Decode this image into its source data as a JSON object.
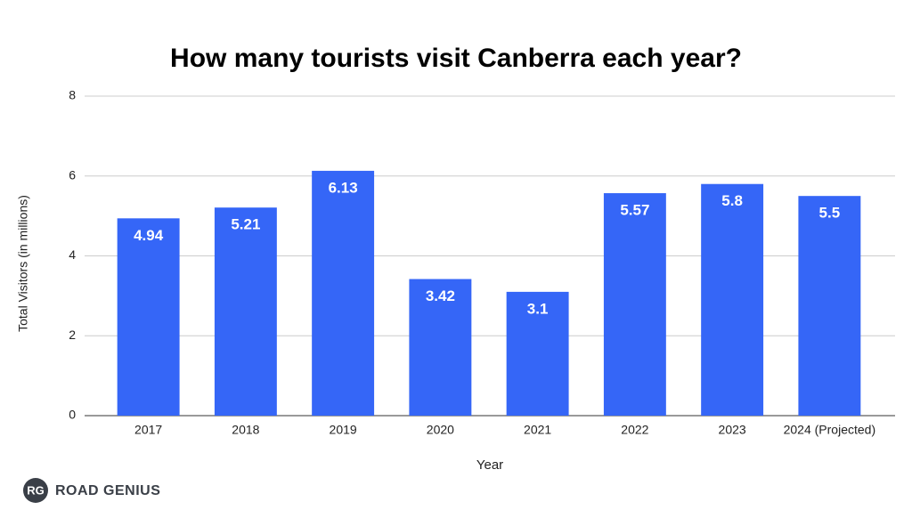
{
  "chart_data": {
    "type": "bar",
    "title": "How many tourists visit Canberra each year?",
    "x_label": "Year",
    "y_label": "Total Visitors (in millions)",
    "categories": [
      "2017",
      "2018",
      "2019",
      "2020",
      "2021",
      "2022",
      "2023",
      "2024 (Projected)"
    ],
    "values": [
      4.94,
      5.21,
      6.13,
      3.42,
      3.1,
      5.57,
      5.8,
      5.5
    ],
    "color": "#3566f7",
    "ylim": [
      0,
      8
    ],
    "yticks": [
      0,
      2,
      4,
      6,
      8
    ],
    "grid": true,
    "data_labels": true
  },
  "logo": {
    "badge": "RG",
    "text": "ROAD GENIUS"
  }
}
